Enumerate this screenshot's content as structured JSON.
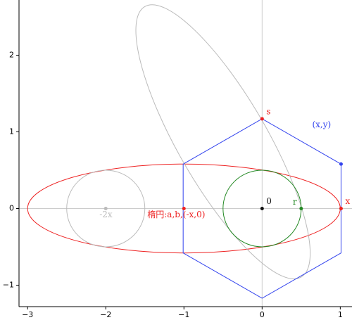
{
  "chart_data": {
    "type": "geometry",
    "xlim": [
      -3.11,
      1.15
    ],
    "ylim": [
      -1.28,
      2.72
    ],
    "xticks": [
      {
        "value": -3,
        "label": "−3"
      },
      {
        "value": -2,
        "label": "−2"
      },
      {
        "value": -1,
        "label": "−1"
      },
      0,
      1
    ],
    "yticks": [
      {
        "value": -1,
        "label": "−1"
      },
      0,
      1,
      2
    ],
    "shapes": [
      {
        "kind": "ellipse",
        "cx": -1,
        "cy": 0,
        "rx": 2,
        "ry": 0.58,
        "angle": 0,
        "color": "#ee2222"
      },
      {
        "kind": "ellipse",
        "cx": -0.5,
        "cy": 0.87,
        "rx": 2,
        "ry": 0.58,
        "angle": 120,
        "color": "#bbbbbb"
      },
      {
        "kind": "ellipse",
        "cx": 0,
        "cy": 0,
        "rx": 0.5,
        "ry": 0.5,
        "angle": 0,
        "color": "#228822"
      },
      {
        "kind": "ellipse",
        "cx": -2,
        "cy": 0,
        "rx": 0.5,
        "ry": 0.5,
        "angle": 0,
        "color": "#bbbbbb"
      }
    ],
    "polygon": {
      "color": "#3344ee",
      "x": [
        0,
        1.01,
        1.01,
        0,
        -1.01,
        -1.01
      ],
      "y": [
        1.17,
        0.58,
        -0.58,
        -1.17,
        -0.58,
        0.58
      ]
    },
    "points": [
      {
        "label": "s",
        "x": 0,
        "y": 1.17,
        "color": "#ee2222"
      },
      {
        "label": "(x,y)",
        "x": 1.01,
        "y": 0.58,
        "color": "#3344ee"
      },
      {
        "label": "x",
        "x": 1.01,
        "y": 0,
        "color": "#ee2222"
      },
      {
        "label": "r",
        "x": 0.5,
        "y": 0,
        "color": "#228822"
      },
      {
        "label": "0",
        "x": 0,
        "y": 0,
        "color": "#111111"
      },
      {
        "label": "-2x",
        "x": -2,
        "y": 0,
        "color": "#bbbbbb"
      },
      {
        "label": "楕円:a,b,(-x,0)",
        "x": -1,
        "y": 0,
        "color": "#ee2222"
      }
    ]
  }
}
